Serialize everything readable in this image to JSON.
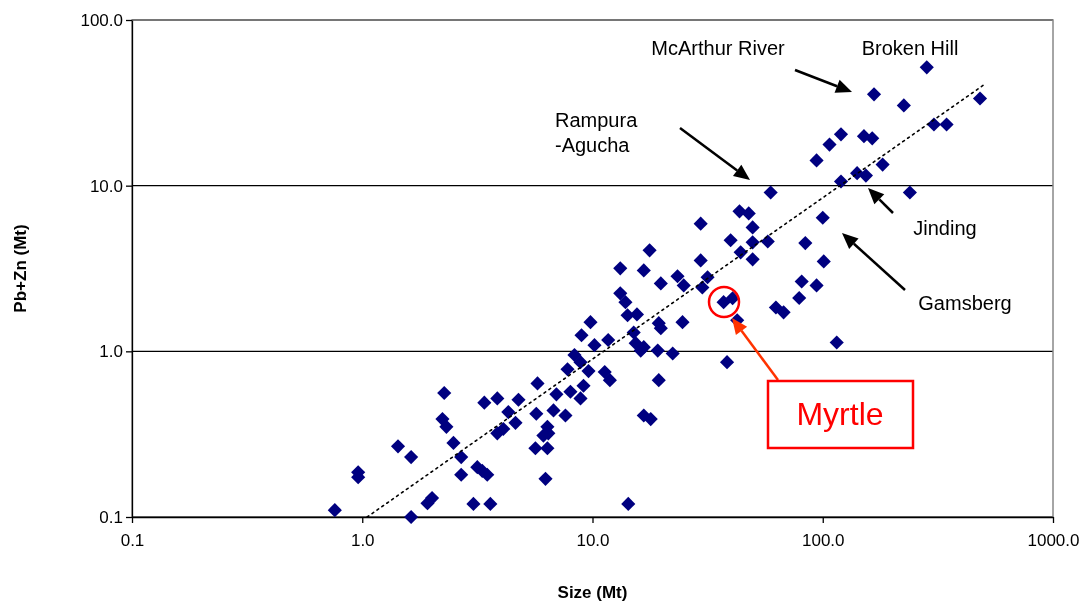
{
  "chart_data": {
    "type": "scatter",
    "xlabel": "Size (Mt)",
    "ylabel": "Pb+Zn (Mt)",
    "log": "xy",
    "grid": "y",
    "marker": "diamond",
    "xlim": [
      0.1,
      1000
    ],
    "ylim": [
      0.1,
      100
    ],
    "xticks": [
      0.1,
      {
        "value": 1,
        "label": "1.0"
      },
      {
        "value": 10,
        "label": "10.0"
      },
      {
        "value": 100,
        "label": "100.0"
      },
      {
        "value": 1000,
        "label": "1000.0"
      }
    ],
    "yticks": [
      0.1,
      {
        "value": 1,
        "label": "1.0"
      },
      {
        "value": 10,
        "label": "10.0"
      },
      {
        "value": 100,
        "label": "100.0"
      }
    ],
    "series": [
      {
        "color": "#000080",
        "x": [
          0.76,
          0.96,
          0.96,
          1.43,
          1.63,
          1.63,
          1.92,
          2.01,
          2.27,
          2.23,
          2.32,
          2.49,
          2.69,
          2.69,
          3.04,
          3.16,
          3.32,
          3.49,
          3.6,
          3.39,
          3.86,
          4.31,
          4.63,
          3.86,
          4.1,
          4.77,
          5.77,
          5.7,
          6.25,
          6.77,
          6.97,
          7.63,
          6.37,
          6.43,
          6.12,
          5.65,
          6.37,
          8.02,
          8.87,
          9.14,
          7.79,
          8.35,
          8.87,
          9.61,
          11.3,
          11.9,
          10.2,
          8.96,
          11.7,
          15.1,
          16.7,
          19.2,
          19.4,
          14.3,
          16.7,
          17.9,
          15.4,
          59.4,
          43.5,
          47.7,
          29.5,
          49.6,
          39.8,
          49.6,
          57.7,
          44,
          49.6,
          29.5,
          17.7,
          13.2,
          16.7,
          23.4,
          24.9,
          31.6,
          30,
          19.8,
          13.2,
          13.9,
          14.2,
          15.6,
          19.4,
          19.8,
          24.6,
          37.1,
          40.6,
          42.5,
          38.4,
          62.6,
          67.6,
          9.8,
          16.2,
          22.3,
          283,
          167,
          225,
          482,
          304,
          345,
          120,
          107,
          151,
          164,
          94,
          182,
          141,
          154,
          120,
          239,
          100,
          84,
          101,
          81,
          94,
          79,
          115
        ],
        "values": [
          0.11,
          0.186,
          0.174,
          0.267,
          0.23,
          0.1,
          0.121,
          0.13,
          0.56,
          0.39,
          0.35,
          0.28,
          0.23,
          0.18,
          0.12,
          0.2,
          0.19,
          0.18,
          0.12,
          0.49,
          0.52,
          0.43,
          0.37,
          0.32,
          0.34,
          0.51,
          0.64,
          0.42,
          0.17,
          0.44,
          0.55,
          0.41,
          0.35,
          0.32,
          0.31,
          0.26,
          0.26,
          0.57,
          0.52,
          0.62,
          0.78,
          0.95,
          0.86,
          0.76,
          0.75,
          0.67,
          1.09,
          1.25,
          1.17,
          1.3,
          1.06,
          1.01,
          0.67,
          0.12,
          0.41,
          0.39,
          1.12,
          9.1,
          7.0,
          6.8,
          5.9,
          5.6,
          4.68,
          4.55,
          4.6,
          3.96,
          3.59,
          3.54,
          4.07,
          3.17,
          3.08,
          2.84,
          2.5,
          2.8,
          2.43,
          2.57,
          2.24,
          1.98,
          1.65,
          1.67,
          1.48,
          1.38,
          1.5,
          1.98,
          2.09,
          1.54,
          0.86,
          1.84,
          1.72,
          1.5,
          1.01,
          0.97,
          51.8,
          35.6,
          30.5,
          33.6,
          23.4,
          23.4,
          20.4,
          17.7,
          19.9,
          19.3,
          14.2,
          13.4,
          11.9,
          11.5,
          10.6,
          9.1,
          6.4,
          4.5,
          3.49,
          2.64,
          2.5,
          2.1,
          1.13
        ]
      },
      {
        "type": "line",
        "color": "#000000",
        "line_style": "dotted",
        "marker": "none",
        "x": [
          1.05,
          511
        ],
        "values": [
          0.1,
          41.4
        ]
      }
    ],
    "annotations": [
      "McArthur River",
      "Broken Hill",
      "Rampura\n-Agucha",
      "Jinding",
      "Gamsberg",
      "Myrtle"
    ]
  }
}
